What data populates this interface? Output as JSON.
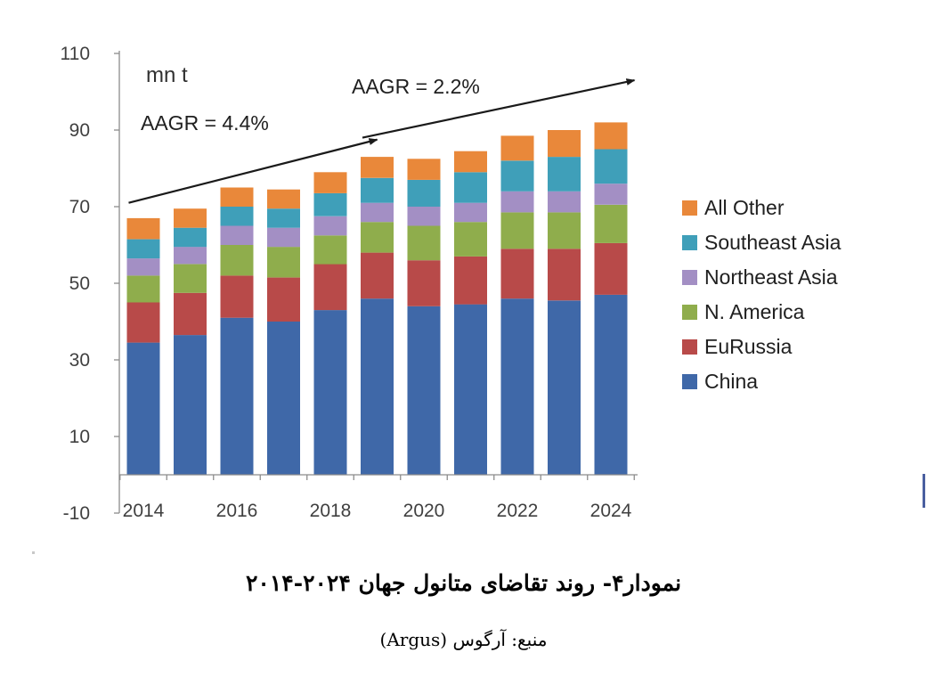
{
  "chart_data": {
    "type": "bar",
    "stacked": true,
    "unit_label": "mn t",
    "categories": [
      "2014",
      "2015",
      "2016",
      "2017",
      "2018",
      "2019",
      "2020",
      "2021",
      "2022",
      "2023",
      "2024"
    ],
    "x_tick_labels": [
      "2014",
      "2016",
      "2018",
      "2020",
      "2022",
      "2024"
    ],
    "y_tick_labels": [
      "110",
      "90",
      "70",
      "50",
      "30",
      "10",
      "-10"
    ],
    "ylim": [
      -10,
      110
    ],
    "grid": false,
    "legend_position": "right",
    "series": [
      {
        "name": "China",
        "color": "#3f68a8",
        "values": [
          34.5,
          36.5,
          41,
          40,
          43,
          46,
          44,
          44.5,
          46,
          45.5,
          47
        ]
      },
      {
        "name": "EuRussia",
        "color": "#b84a49",
        "values": [
          10.5,
          11,
          11,
          11.5,
          12,
          12,
          12,
          12.5,
          13,
          13.5,
          13.5
        ]
      },
      {
        "name": "N. America",
        "color": "#8fad4c",
        "values": [
          7,
          7.5,
          8,
          8,
          7.5,
          8,
          9,
          9,
          9.5,
          9.5,
          10
        ]
      },
      {
        "name": "Northeast Asia",
        "color": "#a38fc4",
        "values": [
          4.5,
          4.5,
          5,
          5,
          5,
          5,
          5,
          5,
          5.5,
          5.5,
          5.5
        ]
      },
      {
        "name": "Southeast Asia",
        "color": "#3f9fb9",
        "values": [
          5,
          5,
          5,
          5,
          6,
          6.5,
          7,
          8,
          8,
          9,
          9
        ]
      },
      {
        "name": "All Other",
        "color": "#e9883a",
        "values": [
          5.5,
          5,
          5,
          5,
          5.5,
          5.5,
          5.5,
          5.5,
          6.5,
          7,
          7
        ]
      }
    ],
    "annotations": [
      {
        "text": "AAGR = 4.4%",
        "from_year": 2014,
        "from_value": 71,
        "to_year": 2019,
        "to_value": 87.5
      },
      {
        "text": "AAGR = 2.2%",
        "from_year": 2019,
        "from_value": 88,
        "to_year": 2024,
        "to_value": 103
      }
    ]
  },
  "caption": {
    "title": "نمودار۴- روند تقاضای متانول جهان ۲۰۲۴-۲۰۱۴",
    "source": "منبع: آرگوس (Argus)"
  }
}
